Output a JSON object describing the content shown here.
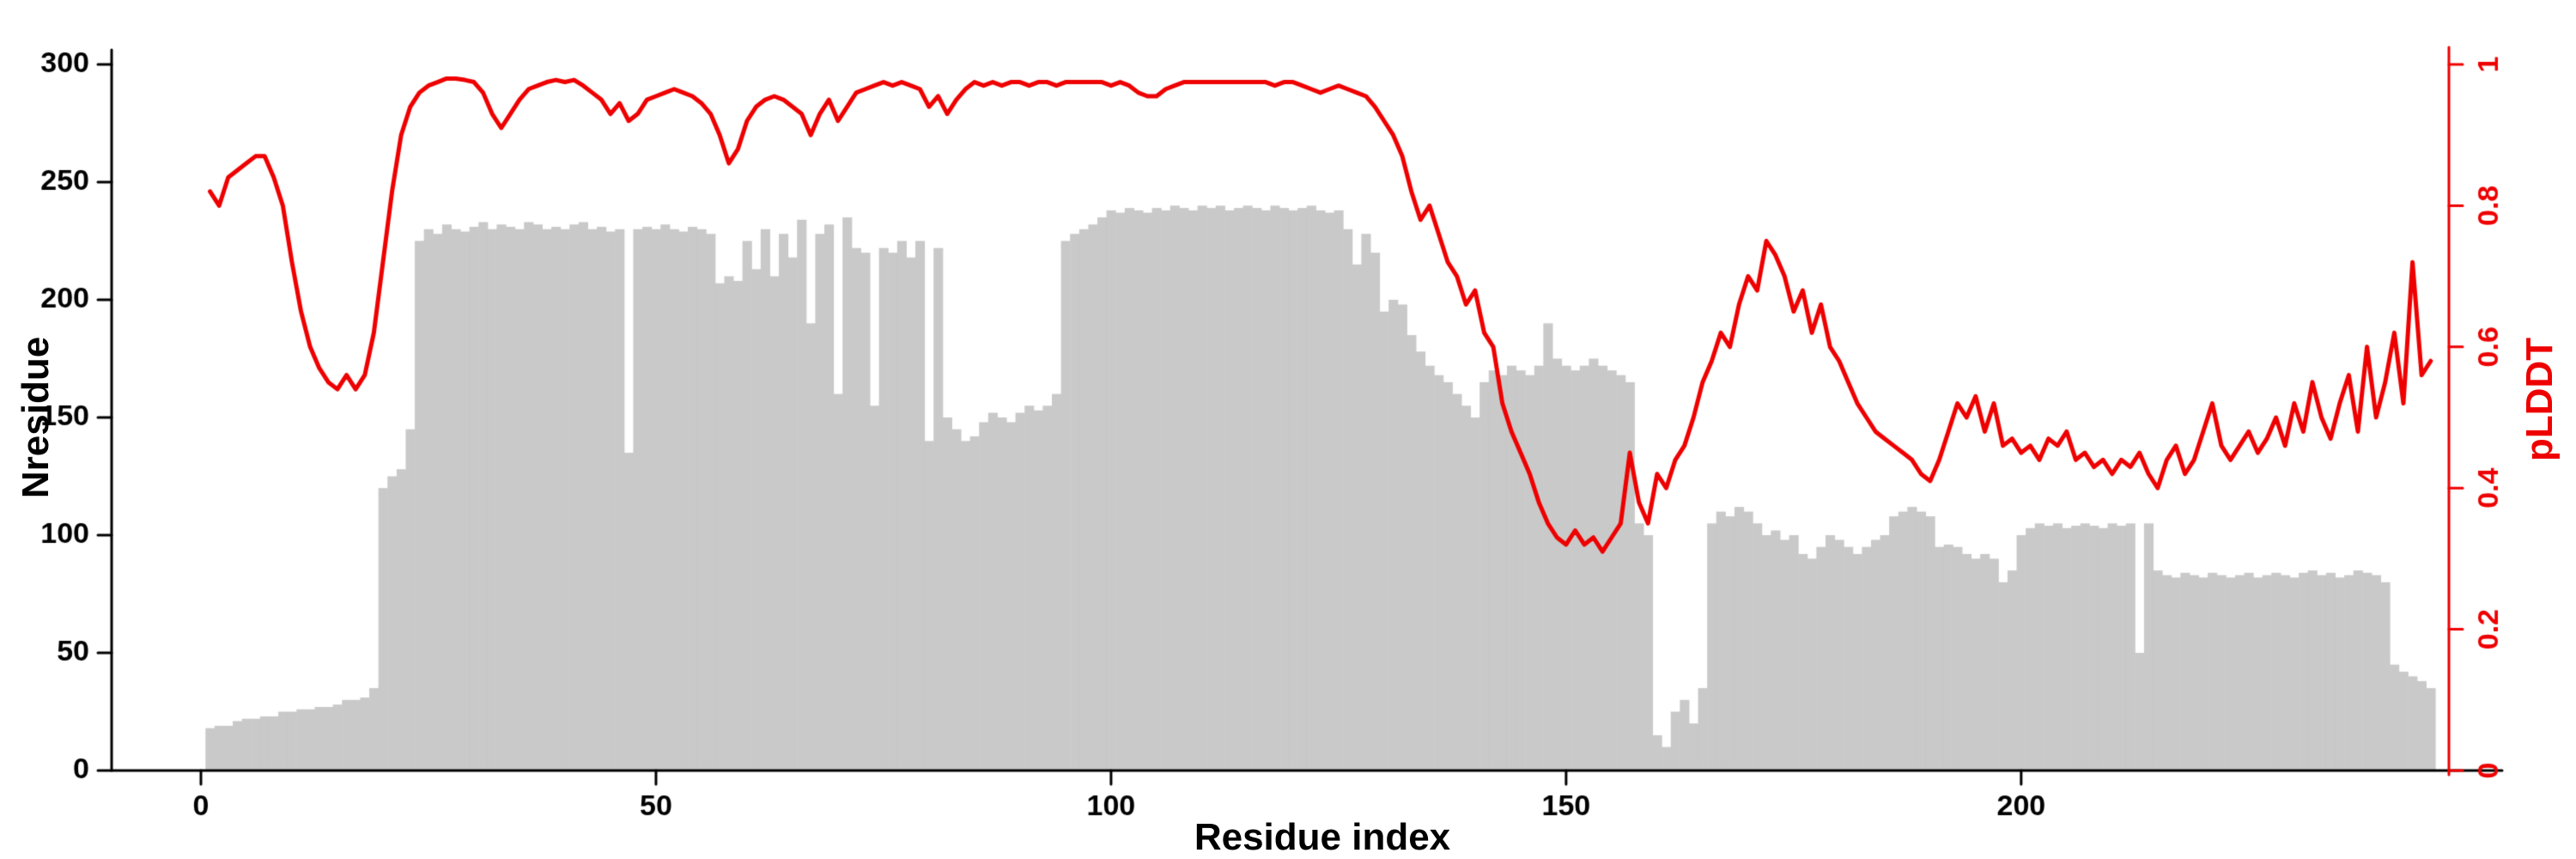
{
  "chart_data": {
    "type": "bar",
    "title": "",
    "xlabel": "Residue index",
    "ylabel_left": "Nresidue",
    "ylabel_right": "pLDDT",
    "x_start": 1,
    "xlim": [
      0,
      247
    ],
    "ylim_left": [
      0,
      300
    ],
    "ylim_right": [
      0,
      1
    ],
    "grid": false,
    "legend_position": "none",
    "x_ticks": [
      {
        "value": 0,
        "label": "0"
      },
      {
        "value": 50,
        "label": "50"
      },
      {
        "value": 100,
        "label": "100"
      },
      {
        "value": 150,
        "label": "150"
      },
      {
        "value": 200,
        "label": "200"
      }
    ],
    "y_ticks_left": [
      {
        "value": 0,
        "label": "0"
      },
      {
        "value": 50,
        "label": "50"
      },
      {
        "value": 100,
        "label": "100"
      },
      {
        "value": 150,
        "label": "150"
      },
      {
        "value": 200,
        "label": "200"
      },
      {
        "value": 250,
        "label": "250"
      },
      {
        "value": 300,
        "label": "300"
      }
    ],
    "y_ticks_right": [
      {
        "value": 0,
        "label": "0"
      },
      {
        "value": 0.2,
        "label": "0.2"
      },
      {
        "value": 0.4,
        "label": "0.4"
      },
      {
        "value": 0.6,
        "label": "0.6"
      },
      {
        "value": 0.8,
        "label": "0.8"
      },
      {
        "value": 1,
        "label": "1"
      }
    ],
    "colors": {
      "bars": "#c9c9c9",
      "line": "#ee0000",
      "axis": "#000000",
      "right_axis": "#ee0000",
      "background": "#ffffff"
    },
    "series": [
      {
        "name": "Nresidue",
        "type": "bar",
        "axis": "left",
        "values": [
          18,
          19,
          19,
          21,
          22,
          22,
          23,
          23,
          25,
          25,
          26,
          26,
          27,
          27,
          28,
          30,
          30,
          31,
          35,
          120,
          125,
          128,
          145,
          225,
          230,
          228,
          232,
          230,
          229,
          231,
          233,
          230,
          232,
          231,
          230,
          233,
          232,
          230,
          231,
          230,
          232,
          233,
          230,
          231,
          229,
          230,
          135,
          230,
          231,
          230,
          232,
          230,
          229,
          231,
          230,
          228,
          207,
          210,
          208,
          225,
          213,
          230,
          210,
          228,
          218,
          234,
          190,
          228,
          232,
          160,
          235,
          222,
          220,
          155,
          222,
          220,
          225,
          218,
          225,
          140,
          222,
          150,
          145,
          140,
          142,
          148,
          152,
          150,
          148,
          152,
          155,
          153,
          155,
          160,
          225,
          228,
          230,
          232,
          235,
          238,
          237,
          239,
          238,
          237,
          239,
          238,
          240,
          239,
          238,
          240,
          239,
          240,
          238,
          239,
          240,
          239,
          238,
          240,
          239,
          238,
          239,
          240,
          238,
          237,
          238,
          230,
          215,
          228,
          220,
          195,
          200,
          198,
          185,
          178,
          172,
          168,
          165,
          160,
          155,
          150,
          165,
          170,
          168,
          172,
          170,
          168,
          172,
          190,
          175,
          172,
          170,
          172,
          175,
          172,
          170,
          168,
          165,
          105,
          100,
          15,
          10,
          25,
          30,
          20,
          35,
          105,
          110,
          108,
          112,
          110,
          105,
          100,
          102,
          98,
          100,
          92,
          90,
          95,
          100,
          98,
          95,
          92,
          95,
          98,
          100,
          108,
          110,
          112,
          110,
          108,
          95,
          96,
          95,
          92,
          90,
          92,
          90,
          80,
          85,
          100,
          103,
          105,
          104,
          105,
          103,
          104,
          105,
          104,
          103,
          105,
          104,
          105,
          50,
          105,
          85,
          83,
          82,
          84,
          83,
          82,
          84,
          83,
          82,
          83,
          84,
          82,
          83,
          84,
          83,
          82,
          84,
          85,
          83,
          84,
          82,
          83,
          85,
          84,
          83,
          80,
          45,
          42,
          40,
          38,
          35
        ]
      },
      {
        "name": "pLDDT",
        "type": "line",
        "axis": "right",
        "values": [
          0.82,
          0.8,
          0.84,
          0.85,
          0.86,
          0.87,
          0.87,
          0.84,
          0.8,
          0.72,
          0.65,
          0.6,
          0.57,
          0.55,
          0.54,
          0.56,
          0.54,
          0.56,
          0.62,
          0.72,
          0.82,
          0.9,
          0.94,
          0.96,
          0.97,
          0.975,
          0.98,
          0.98,
          0.978,
          0.975,
          0.96,
          0.93,
          0.91,
          0.93,
          0.95,
          0.965,
          0.97,
          0.975,
          0.978,
          0.975,
          0.978,
          0.97,
          0.96,
          0.95,
          0.93,
          0.945,
          0.92,
          0.93,
          0.95,
          0.955,
          0.96,
          0.965,
          0.96,
          0.955,
          0.945,
          0.93,
          0.9,
          0.86,
          0.88,
          0.92,
          0.94,
          0.95,
          0.955,
          0.95,
          0.94,
          0.93,
          0.9,
          0.93,
          0.95,
          0.92,
          0.94,
          0.96,
          0.965,
          0.97,
          0.975,
          0.97,
          0.975,
          0.97,
          0.965,
          0.94,
          0.955,
          0.93,
          0.95,
          0.965,
          0.975,
          0.97,
          0.975,
          0.97,
          0.975,
          0.975,
          0.97,
          0.975,
          0.975,
          0.97,
          0.975,
          0.975,
          0.975,
          0.975,
          0.975,
          0.97,
          0.975,
          0.97,
          0.96,
          0.955,
          0.955,
          0.965,
          0.97,
          0.975,
          0.975,
          0.975,
          0.975,
          0.975,
          0.975,
          0.975,
          0.975,
          0.975,
          0.975,
          0.97,
          0.975,
          0.975,
          0.97,
          0.965,
          0.96,
          0.965,
          0.97,
          0.965,
          0.96,
          0.955,
          0.94,
          0.92,
          0.9,
          0.87,
          0.82,
          0.78,
          0.8,
          0.76,
          0.72,
          0.7,
          0.66,
          0.68,
          0.62,
          0.6,
          0.52,
          0.48,
          0.45,
          0.42,
          0.38,
          0.35,
          0.33,
          0.32,
          0.34,
          0.32,
          0.33,
          0.31,
          0.33,
          0.35,
          0.45,
          0.38,
          0.35,
          0.42,
          0.4,
          0.44,
          0.46,
          0.5,
          0.55,
          0.58,
          0.62,
          0.6,
          0.66,
          0.7,
          0.68,
          0.75,
          0.73,
          0.7,
          0.65,
          0.68,
          0.62,
          0.66,
          0.6,
          0.58,
          0.55,
          0.52,
          0.5,
          0.48,
          0.47,
          0.46,
          0.45,
          0.44,
          0.42,
          0.41,
          0.44,
          0.48,
          0.52,
          0.5,
          0.53,
          0.48,
          0.52,
          0.46,
          0.47,
          0.45,
          0.46,
          0.44,
          0.47,
          0.46,
          0.48,
          0.44,
          0.45,
          0.43,
          0.44,
          0.42,
          0.44,
          0.43,
          0.45,
          0.42,
          0.4,
          0.44,
          0.46,
          0.42,
          0.44,
          0.48,
          0.52,
          0.46,
          0.44,
          0.46,
          0.48,
          0.45,
          0.47,
          0.5,
          0.46,
          0.52,
          0.48,
          0.55,
          0.5,
          0.47,
          0.52,
          0.56,
          0.48,
          0.6,
          0.5,
          0.55,
          0.62,
          0.52,
          0.72,
          0.56,
          0.58
        ]
      }
    ]
  }
}
